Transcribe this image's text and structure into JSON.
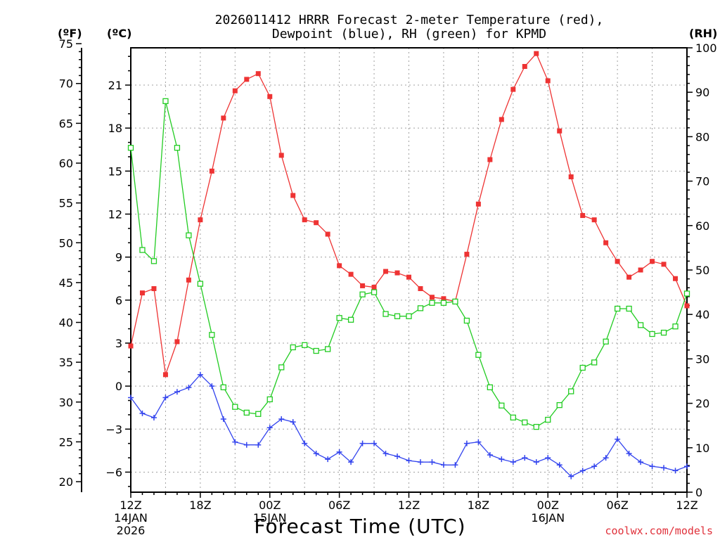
{
  "chart_data": {
    "type": "line",
    "title_line1": "2026011412 HRRR Forecast 2-meter Temperature (red),",
    "title_line2": "Dewpoint (blue), RH (green) for KPMD",
    "xlabel": "Forecast Time (UTC)",
    "credit": "coolwx.com/models",
    "units": {
      "fahrenheit": "(ºF)",
      "celsius": "(ºC)",
      "rh": "(RH)"
    },
    "x_range": [
      0,
      48
    ],
    "x_ticks": [
      {
        "x": 0,
        "lines": [
          "12Z",
          "14JAN",
          "2026"
        ]
      },
      {
        "x": 6,
        "lines": [
          "18Z"
        ]
      },
      {
        "x": 12,
        "lines": [
          "00Z",
          "15JAN"
        ]
      },
      {
        "x": 18,
        "lines": [
          "06Z"
        ]
      },
      {
        "x": 24,
        "lines": [
          "12Z"
        ]
      },
      {
        "x": 30,
        "lines": [
          "18Z"
        ]
      },
      {
        "x": 36,
        "lines": [
          "00Z",
          "16JAN"
        ]
      },
      {
        "x": 42,
        "lines": [
          "06Z"
        ]
      },
      {
        "x": 48,
        "lines": [
          "12Z"
        ]
      }
    ],
    "y_celsius": {
      "range": [
        -7.4,
        23.6
      ],
      "ticks": [
        -6,
        -3,
        0,
        3,
        6,
        9,
        12,
        15,
        18,
        21
      ]
    },
    "y_fahrenheit": {
      "ticks": [
        20,
        25,
        30,
        35,
        40,
        45,
        50,
        55,
        60,
        65,
        70,
        75
      ]
    },
    "y_rh": {
      "range": [
        0,
        100
      ],
      "ticks": [
        0,
        10,
        20,
        30,
        40,
        50,
        60,
        70,
        80,
        90,
        100
      ]
    },
    "colors": {
      "temperature": "#ee3333",
      "dewpoint": "#3344ee",
      "rh": "#22cc22"
    },
    "series": [
      {
        "key": "temperature",
        "axis": "celsius",
        "marker": "filled-square",
        "values": [
          2.8,
          6.5,
          6.8,
          0.8,
          3.1,
          7.4,
          11.6,
          15.0,
          18.7,
          20.6,
          21.4,
          21.8,
          20.2,
          16.1,
          13.3,
          11.6,
          11.4,
          10.6,
          8.4,
          7.8,
          7.0,
          6.9,
          8.0,
          7.9,
          7.6,
          6.8,
          6.2,
          6.1,
          5.9,
          9.2,
          12.7,
          15.8,
          18.6,
          20.7,
          22.3,
          23.2,
          21.3,
          17.8,
          14.6,
          11.9,
          11.6,
          10.0,
          8.7,
          7.6,
          8.1,
          8.7,
          8.5,
          7.5,
          5.6
        ]
      },
      {
        "key": "dewpoint",
        "axis": "celsius",
        "marker": "plus",
        "values": [
          -0.8,
          -1.9,
          -2.2,
          -0.8,
          -0.4,
          -0.1,
          0.8,
          0.0,
          -2.3,
          -3.9,
          -4.1,
          -4.1,
          -2.9,
          -2.3,
          -2.5,
          -4.0,
          -4.7,
          -5.1,
          -4.6,
          -5.3,
          -4.0,
          -4.0,
          -4.7,
          -4.9,
          -5.2,
          -5.3,
          -5.3,
          -5.5,
          -5.5,
          -4.0,
          -3.9,
          -4.8,
          -5.1,
          -5.3,
          -5.0,
          -5.3,
          -5.0,
          -5.5,
          -6.3,
          -5.9,
          -5.6,
          -5.0,
          -3.7,
          -4.7,
          -5.3,
          -5.6,
          -5.7,
          -5.9,
          -5.6
        ]
      },
      {
        "key": "rh",
        "axis": "rh",
        "marker": "open-square",
        "values": [
          77.5,
          54.5,
          52.0,
          88.0,
          77.5,
          57.8,
          46.9,
          35.4,
          23.6,
          19.2,
          17.9,
          17.6,
          20.9,
          28.1,
          32.6,
          33.1,
          31.8,
          32.2,
          39.2,
          38.8,
          44.5,
          45.0,
          40.1,
          39.6,
          39.6,
          41.4,
          42.6,
          42.6,
          42.9,
          38.6,
          30.9,
          23.6,
          19.5,
          16.8,
          15.7,
          14.7,
          16.3,
          19.6,
          22.7,
          28.0,
          29.2,
          33.9,
          41.3,
          41.3,
          37.6,
          35.6,
          35.9,
          37.3,
          44.7
        ]
      }
    ]
  }
}
